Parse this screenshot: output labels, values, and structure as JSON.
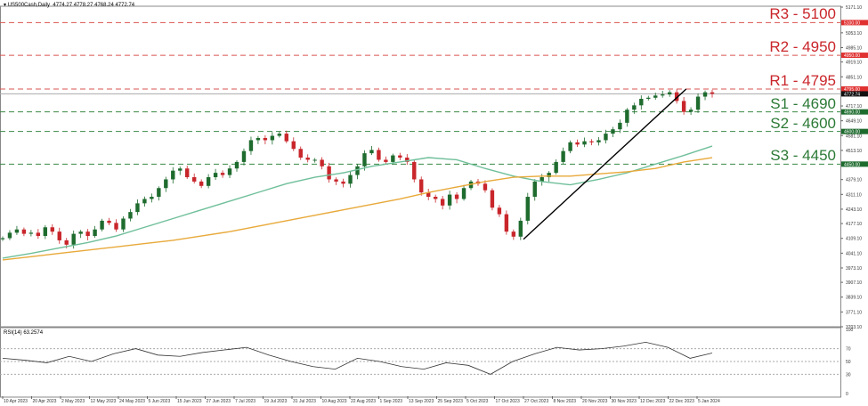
{
  "header": {
    "symbol": "US500Cash,Daily",
    "ohlc": "4774.27 4778.27 4768.24 4772.74"
  },
  "rsi_label": "RSI(14) 63.2574",
  "colors": {
    "bull": "#1e6b2e",
    "bear": "#c8262b",
    "resistance": "#d9534f",
    "support": "#3a8a45",
    "ma100": "#6fbf9a",
    "ma200": "#e8a93a",
    "trendline": "#000000"
  },
  "chart_data": [
    {
      "type": "candlestick",
      "title": "US500Cash,Daily",
      "yticks": [
        "5171.10",
        "5053.10",
        "4985.10",
        "4919.10",
        "4851.10",
        "4717.10",
        "4649.10",
        "4581.10",
        "4513.10",
        "4379.10",
        "4311.10",
        "4243.10",
        "4177.10",
        "4109.10",
        "4041.10",
        "3973.10",
        "3907.10",
        "3839.10",
        "3771.10",
        "3703.10"
      ],
      "ylim": [
        3703.1,
        5171.1
      ],
      "xticks": [
        "10 Apr 2023",
        "20 Apr 2023",
        "2 May 2023",
        "12 May 2023",
        "24 May 2023",
        "5 Jun 2023",
        "15 Jun 2023",
        "27 Jun 2023",
        "7 Jul 2023",
        "19 Jul 2023",
        "31 Jul 2023",
        "10 Aug 2023",
        "22 Aug 2023",
        "1 Sep 2023",
        "13 Sep 2023",
        "25 Sep 2023",
        "5 Oct 2023",
        "17 Oct 2023",
        "27 Oct 2023",
        "8 Nov 2023",
        "20 Nov 2023",
        "30 Nov 2023",
        "12 Dec 2023",
        "22 Dec 2023",
        "5 Jan 2024"
      ],
      "start_price": 4105,
      "closes": [
        4110,
        4135,
        4150,
        4130,
        4135,
        4120,
        4160,
        4140,
        4100,
        4080,
        4130,
        4140,
        4120,
        4150,
        4190,
        4180,
        4150,
        4200,
        4230,
        4270,
        4290,
        4300,
        4340,
        4380,
        4420,
        4430,
        4390,
        4370,
        4350,
        4390,
        4410,
        4400,
        4430,
        4460,
        4510,
        4560,
        4570,
        4560,
        4580,
        4590,
        4555,
        4520,
        4480,
        4470,
        4470,
        4440,
        4380,
        4370,
        4360,
        4400,
        4440,
        4500,
        4515,
        4470,
        4460,
        4490,
        4480,
        4460,
        4380,
        4320,
        4300,
        4290,
        4260,
        4310,
        4290,
        4340,
        4370,
        4360,
        4330,
        4250,
        4220,
        4140,
        4117,
        4190,
        4300,
        4370,
        4390,
        4410,
        4460,
        4510,
        4550,
        4540,
        4555,
        4550,
        4560,
        4590,
        4610,
        4640,
        4700,
        4720,
        4750,
        4755,
        4765,
        4770,
        4780,
        4740,
        4690,
        4700,
        4760,
        4780,
        4772.74
      ],
      "ma100": [
        4018,
        4040,
        4065,
        4090,
        4120,
        4160,
        4200,
        4240,
        4280,
        4320,
        4360,
        4390,
        4410,
        4440,
        4460,
        4480,
        4470,
        4430,
        4395,
        4370,
        4355,
        4380,
        4410,
        4450,
        4490,
        4533
      ],
      "ma200": [
        4010,
        4025,
        4040,
        4055,
        4070,
        4085,
        4100,
        4120,
        4140,
        4165,
        4190,
        4215,
        4240,
        4265,
        4290,
        4320,
        4345,
        4370,
        4390,
        4395,
        4395,
        4405,
        4415,
        4430,
        4460,
        4480
      ],
      "levels": [
        {
          "label": "R3 - 5100",
          "price": 5100,
          "tag": "5100.00",
          "kind": "resistance"
        },
        {
          "label": "R2 - 4950",
          "price": 4950,
          "tag": "4950.00",
          "kind": "resistance"
        },
        {
          "label": "R1 - 4795",
          "price": 4795,
          "tag": "4795.00",
          "kind": "resistance"
        },
        {
          "label": "S1 - 4690",
          "price": 4690,
          "tag": "4690.00",
          "kind": "support"
        },
        {
          "label": "S2 - 4600",
          "price": 4600,
          "tag": "4600.00",
          "kind": "support"
        },
        {
          "label": "S3 - 4450",
          "price": 4450,
          "tag": "4450.00",
          "kind": "support"
        }
      ],
      "current_price": {
        "price": 4772.74,
        "tag": "4772.74"
      },
      "trendline": {
        "from": {
          "date": "27 Oct 2023",
          "price": 4105
        },
        "to": {
          "date": "28 Dec 2023",
          "price": 4795
        }
      }
    },
    {
      "type": "line",
      "title": "RSI(14) 63.2574",
      "yticks": [
        "100",
        "70",
        "50",
        "30",
        "0"
      ],
      "ylim": [
        0,
        100
      ],
      "levels": [
        70,
        50,
        30
      ],
      "values": [
        55,
        52,
        48,
        58,
        50,
        62,
        70,
        60,
        58,
        64,
        68,
        72,
        60,
        50,
        42,
        38,
        55,
        50,
        42,
        38,
        48,
        44,
        30,
        50,
        62,
        72,
        68,
        70,
        74,
        80,
        72,
        55,
        63.26
      ]
    }
  ]
}
